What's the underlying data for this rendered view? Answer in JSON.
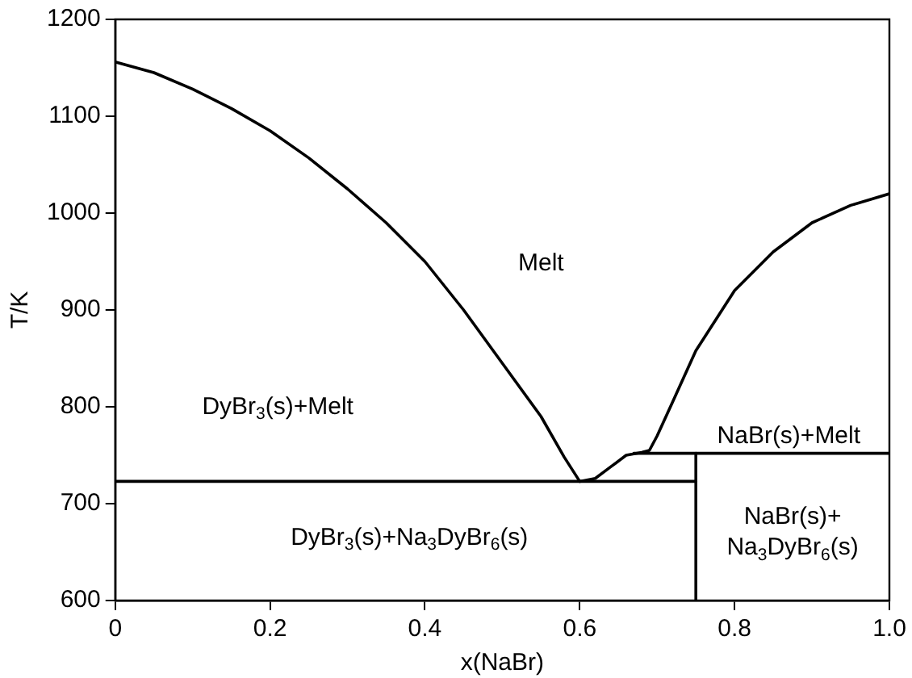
{
  "chart_data": {
    "type": "line",
    "xlabel": "x(NaBr)",
    "ylabel": "T/K",
    "xlim": [
      0,
      1
    ],
    "xticks": [
      0,
      0.2,
      0.4,
      0.6,
      0.8,
      {
        "value": 1,
        "label": "1.0"
      }
    ],
    "ylim": [
      600,
      1200
    ],
    "yticks": [
      600,
      700,
      800,
      900,
      1000,
      1100,
      1200
    ],
    "grid": false,
    "legend": false,
    "marker": "none",
    "line_style": "solid",
    "series": [
      {
        "color": "#000000",
        "x": [
          0,
          0.05,
          0.1,
          0.15,
          0.2,
          0.25,
          0.3,
          0.35,
          0.4,
          0.45,
          0.5,
          0.55,
          0.58,
          0.6
        ],
        "values": [
          1156,
          1145,
          1128,
          1108,
          1085,
          1057,
          1025,
          990,
          950,
          900,
          845,
          790,
          748,
          723
        ]
      },
      {
        "color": "#000000",
        "x": [
          0.6,
          0.62,
          0.64,
          0.66,
          0.68,
          0.69,
          0.7,
          0.72,
          0.75,
          0.8,
          0.85,
          0.9,
          0.95,
          1
        ],
        "values": [
          723,
          726,
          738,
          750,
          753,
          755,
          770,
          805,
          858,
          920,
          960,
          990,
          1008,
          1020
        ]
      },
      {
        "color": "#000000",
        "x": [
          0,
          0.75
        ],
        "values": [
          723,
          723
        ]
      },
      {
        "color": "#000000",
        "x": [
          0.67,
          1
        ],
        "values": [
          752,
          752
        ]
      },
      {
        "color": "#000000",
        "x": [
          0.75,
          0.75
        ],
        "values": [
          600,
          752
        ]
      }
    ],
    "annotations": [
      "Melt",
      "DyBr$_{3}$(s)+Melt",
      "NaBr(s)+Melt",
      "DyBr$_{3}$(s)+Na$_{3}$DyBr$_{6}$(s)",
      "NaBr(s)+\nNa$_{3}$DyBr$_{6}$(s)"
    ]
  }
}
